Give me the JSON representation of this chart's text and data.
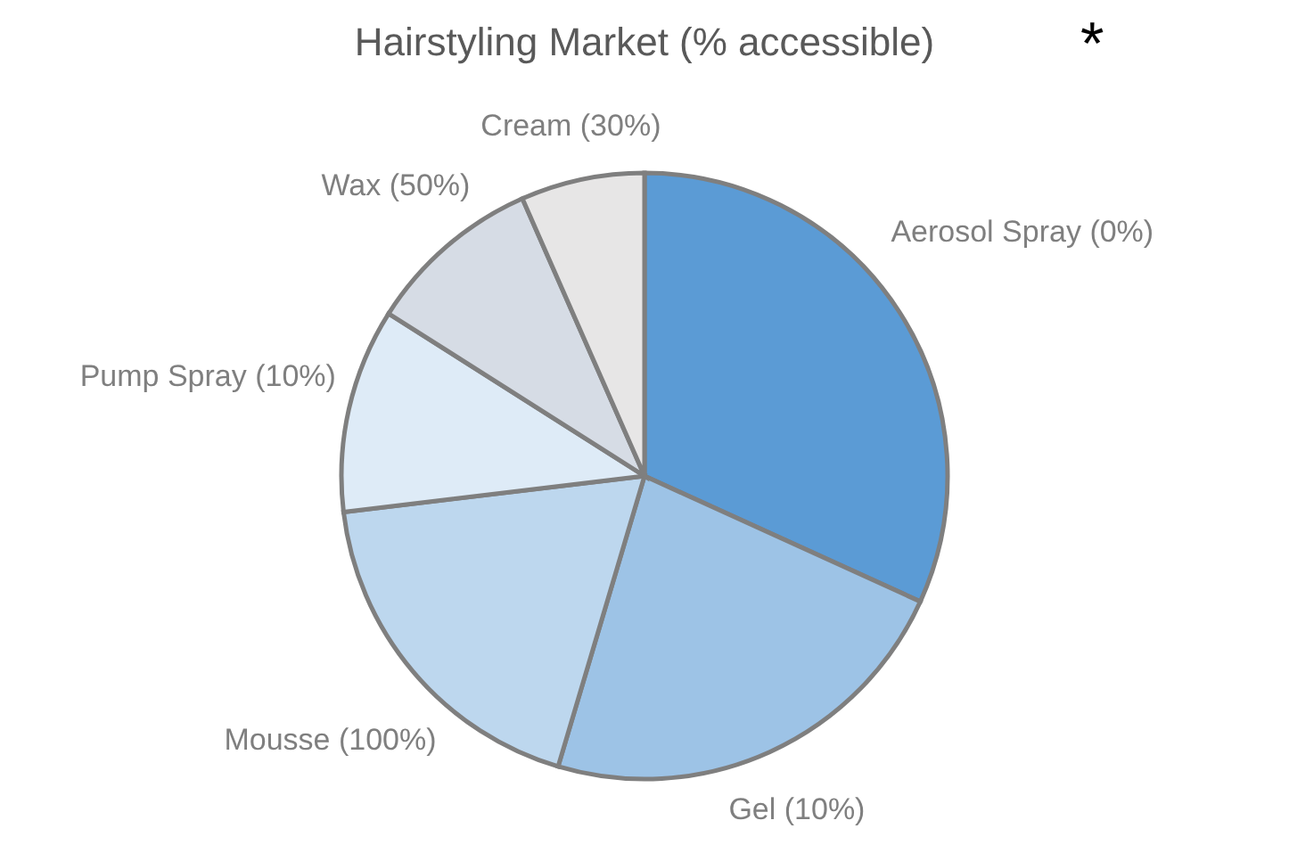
{
  "chart_data": {
    "type": "pie",
    "title": "Hairstyling Market (% accessible)",
    "annotations": [
      "*"
    ],
    "categories": [
      "Aerosol Spray (0%)",
      "Gel (10%)",
      "Mousse (100%)",
      "Pump Spray (10%)",
      "Wax (50%)",
      "Cream (30%)"
    ],
    "values": [
      31.8,
      22.8,
      18.5,
      10.9,
      9.4,
      6.6
    ],
    "colors": [
      "#5b9bd5",
      "#9dc3e6",
      "#bdd7ee",
      "#deebf7",
      "#d6dce5",
      "#e7e6e6"
    ],
    "legend": false
  }
}
